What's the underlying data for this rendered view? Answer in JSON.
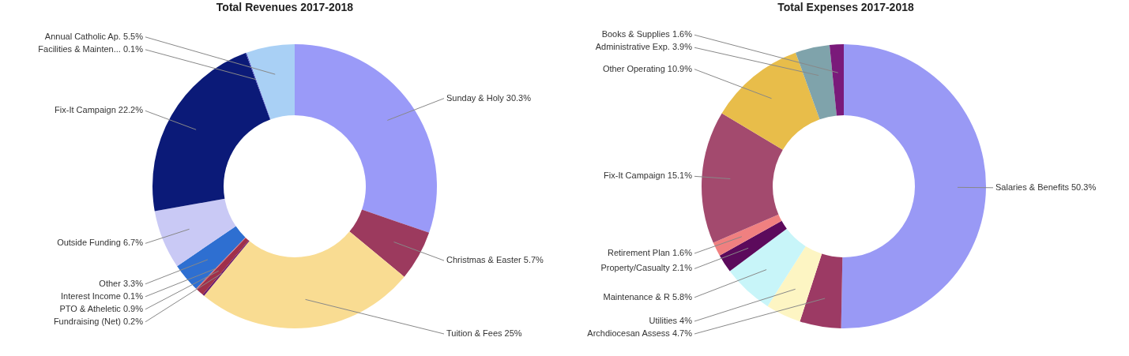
{
  "chart_data": [
    {
      "type": "donut",
      "title": "Total Revenues 2017-2018",
      "categories": [
        "Sunday & Holy",
        "Christmas & Easter",
        "Tuition & Fees",
        "Fundraising (Net)",
        "PTO & Atheletic",
        "Interest Income",
        "Other",
        "Outside Funding",
        "Fix-It Campaign",
        "Facilities & Mainten...",
        "Annual Catholic Ap."
      ],
      "values": [
        30.3,
        5.7,
        25,
        0.2,
        0.9,
        0.1,
        3.3,
        6.7,
        22.2,
        0.1,
        5.5
      ],
      "value_labels": [
        "30.3%",
        "5.7%",
        "25%",
        "0.2%",
        "0.9%",
        "0.1%",
        "3.3%",
        "6.7%",
        "22.2%",
        "0.1%",
        "5.5%"
      ],
      "colors": [
        "#9a9af8",
        "#9c3a5e",
        "#f9dc92",
        "#6b1a6b",
        "#a0304a",
        "#e06666",
        "#2e6fd1",
        "#c9c9f5",
        "#0b1a78",
        "#4a4ac0",
        "#a9d0f5"
      ],
      "legend": false
    },
    {
      "type": "donut",
      "title": "Total Expenses 2017-2018",
      "categories": [
        "Salaries & Benefits",
        "Archdiocesan Assess",
        "Utilities",
        "Maintenance & R",
        "Property/Casualty",
        "Retirement Plan",
        "Fix-It Campaign",
        "Other Operating",
        "Administrative Exp.",
        "Books & Supplies"
      ],
      "values": [
        50.3,
        4.7,
        4,
        5.8,
        2.1,
        1.6,
        15.1,
        10.9,
        3.9,
        1.6
      ],
      "value_labels": [
        "50.3%",
        "4.7%",
        "4%",
        "5.8%",
        "2.1%",
        "1.6%",
        "15.1%",
        "10.9%",
        "3.9%",
        "1.6%"
      ],
      "colors": [
        "#9999f5",
        "#9c3a64",
        "#fdf5c3",
        "#c8f5f9",
        "#5c0a5c",
        "#f08080",
        "#a34a6e",
        "#e8bd4a",
        "#7fa3ab",
        "#7a1a7a"
      ],
      "legend": false
    }
  ]
}
